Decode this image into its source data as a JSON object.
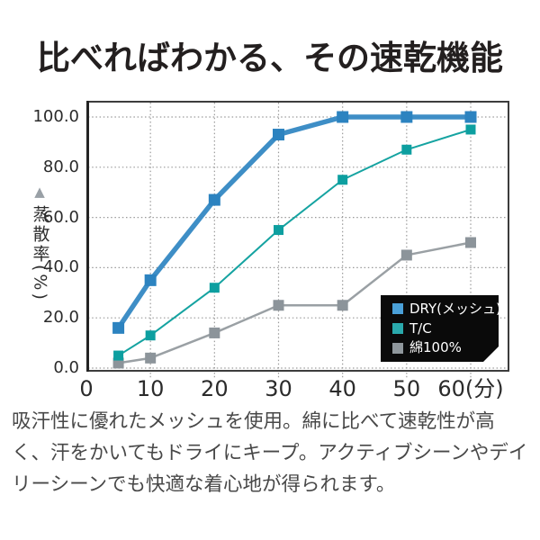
{
  "title": "比べればわかる、その速乾機能",
  "description": "吸汗性に優れたメッシュを使用。綿に比べて速乾性が高\nく、汗をかいてもドライにキープ。アクティブシーンやデイ\nリーシーンでも快適な着心地が得られます。",
  "chart_data": {
    "type": "line",
    "x": [
      5,
      10,
      20,
      30,
      40,
      50,
      60
    ],
    "series": [
      {
        "name": "DRY(メッシュ)",
        "values": [
          16,
          35,
          67,
          93,
          100,
          100,
          100
        ],
        "color": "#3e8ec6",
        "marker_color": "#2c83c0",
        "legend_color": "#4aa0d8",
        "line_width": 5.5,
        "marker_size": 13
      },
      {
        "name": "T/C",
        "values": [
          5,
          13,
          32,
          55,
          75,
          87,
          95
        ],
        "color": "#15a3a1",
        "marker_color": "#0d9fa0",
        "legend_color": "#2aa9ac",
        "line_width": 2,
        "marker_size": 11
      },
      {
        "name": "綿100%",
        "values": [
          2,
          4,
          14,
          25,
          25,
          45,
          50
        ],
        "color": "#9aa0a4",
        "marker_color": "#8c949a",
        "legend_color": "#8f979c",
        "line_width": 2.5,
        "marker_size": 12
      }
    ],
    "x_ticks": [
      {
        "value": 0,
        "label": "0"
      },
      {
        "value": 10,
        "label": "10"
      },
      {
        "value": 20,
        "label": "20"
      },
      {
        "value": 30,
        "label": "30"
      },
      {
        "value": 40,
        "label": "40"
      },
      {
        "value": 50,
        "label": "50"
      },
      {
        "value": 60,
        "label": "60(分)"
      }
    ],
    "y_ticks": [
      {
        "value": 0,
        "label": "0.0"
      },
      {
        "value": 20,
        "label": "20.0"
      },
      {
        "value": 40,
        "label": "40.0"
      },
      {
        "value": 60,
        "label": "60.0"
      },
      {
        "value": 80,
        "label": "80.0"
      },
      {
        "value": 100,
        "label": "100.0"
      }
    ],
    "ylabel": "蒸散率(%)",
    "ylabel_pointer": "▲",
    "xlim": [
      0,
      66
    ],
    "ylim": [
      0,
      107.5
    ],
    "grid": "dotted",
    "grid_color": "#9a9a9a",
    "frame_color": "#3c3c3c",
    "legend": {
      "position": "bottom-right-inside",
      "background": "#0a0a0a",
      "text_color": "#ffffff"
    }
  }
}
